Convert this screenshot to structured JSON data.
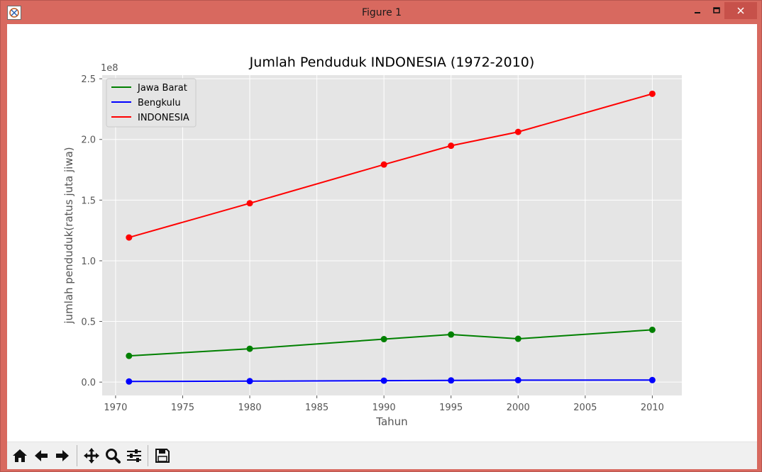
{
  "window": {
    "title": "Figure 1",
    "minimize_icon": "minimize-icon",
    "maximize_icon": "maximize-icon",
    "close_icon": "close-icon"
  },
  "toolbar": {
    "tools": [
      "home-icon",
      "back-arrow-icon",
      "forward-arrow-icon",
      "pan-icon",
      "zoom-icon",
      "configure-subplots-icon",
      "save-icon"
    ]
  },
  "chart_data": {
    "type": "line",
    "title": "Jumlah Penduduk INDONESIA (1972-2010)",
    "xlabel": "Tahun",
    "ylabel": "jumlah penduduk(ratus juta jiwa)",
    "y_offset_label": "1e8",
    "x": [
      1971,
      1980,
      1990,
      1995,
      2000,
      2010
    ],
    "xticks": [
      "1970",
      "1975",
      "1980",
      "1985",
      "1990",
      "1995",
      "2000",
      "2005",
      "2010"
    ],
    "yticks": [
      "0.0",
      "0.5",
      "1.0",
      "1.5",
      "2.0",
      "2.5"
    ],
    "xlim": [
      1969,
      2012.2
    ],
    "ylim": [
      -0.11,
      2.53
    ],
    "grid": true,
    "legend_position": "top-left",
    "series": [
      {
        "name": "Jawa Barat",
        "color": "#008000",
        "values": [
          0.216,
          0.275,
          0.354,
          0.392,
          0.357,
          0.431
        ]
      },
      {
        "name": "Bengkulu",
        "color": "#0000ff",
        "values": [
          0.005,
          0.008,
          0.012,
          0.014,
          0.016,
          0.017
        ]
      },
      {
        "name": "INDONESIA",
        "color": "#ff0000",
        "values": [
          1.192,
          1.474,
          1.793,
          1.948,
          2.062,
          2.376
        ]
      }
    ]
  }
}
